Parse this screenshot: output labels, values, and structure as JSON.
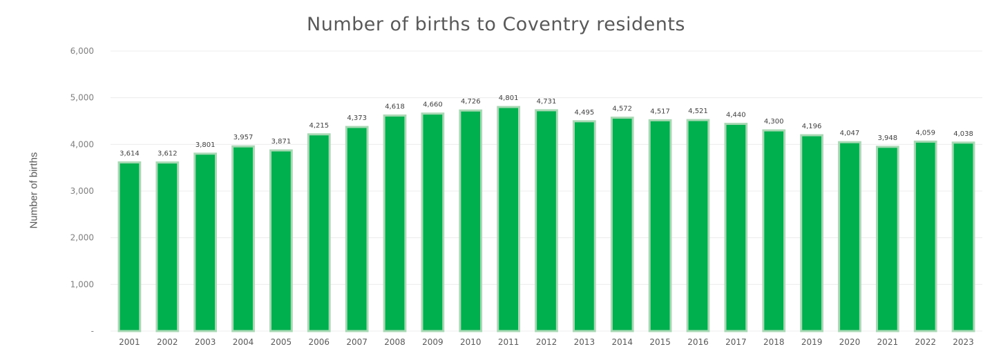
{
  "chart_data": {
    "type": "bar",
    "title": "Number of births to Coventry residents",
    "xlabel": "",
    "ylabel": "Number of births",
    "ylim": [
      0,
      6000
    ],
    "yticks": [
      "-",
      "1,000",
      "2,000",
      "3,000",
      "4,000",
      "5,000",
      "6,000"
    ],
    "grid": true,
    "legend": "none",
    "bar_color": "#00b04f",
    "bar_edge_color": "#a9d9b4",
    "categories": [
      "2001",
      "2002",
      "2003",
      "2004",
      "2005",
      "2006",
      "2007",
      "2008",
      "2009",
      "2010",
      "2011",
      "2012",
      "2013",
      "2014",
      "2015",
      "2016",
      "2017",
      "2018",
      "2019",
      "2020",
      "2021",
      "2022",
      "2023"
    ],
    "values": [
      3614,
      3612,
      3801,
      3957,
      3871,
      4215,
      4373,
      4618,
      4660,
      4726,
      4801,
      4731,
      4495,
      4572,
      4517,
      4521,
      4440,
      4300,
      4196,
      4047,
      3948,
      4059,
      4038
    ],
    "value_labels": [
      "3,614",
      "3,612",
      "3,801",
      "3,957",
      "3,871",
      "4,215",
      "4,373",
      "4,618",
      "4,660",
      "4,726",
      "4,801",
      "4,731",
      "4,495",
      "4,572",
      "4,517",
      "4,521",
      "4,440",
      "4,300",
      "4,196",
      "4,047",
      "3,948",
      "4,059",
      "4,038"
    ]
  }
}
